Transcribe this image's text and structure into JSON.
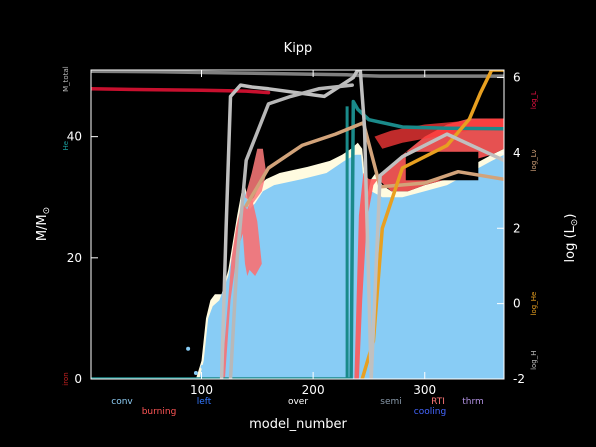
{
  "chart_data": {
    "type": "line",
    "title": "Kipp",
    "xlabel": "model_number",
    "ylabel_left": "M/M",
    "ylabel_left_sub": "⊙",
    "ylabel_right": "log (L",
    "ylabel_right_sub": "⊙",
    "ylabel_right_close": ")",
    "x_range": [
      1,
      371
    ],
    "y_left_range": [
      0,
      51
    ],
    "y_right_range": [
      -2,
      6.2
    ],
    "x_ticks": [
      100,
      200,
      300
    ],
    "y_left_ticks": [
      0,
      20,
      40
    ],
    "y_right_ticks": [
      -2,
      0,
      2,
      4,
      6
    ],
    "left_side_labels": [
      {
        "id": "mtotal",
        "text": "M_total",
        "color": "#bbbbbb",
        "y": 49.5
      },
      {
        "id": "he",
        "text": "He",
        "color": "#1a9a9a",
        "y": 38.5
      },
      {
        "id": "iron",
        "text": "iron",
        "color": "#cc2222",
        "y": 0
      }
    ],
    "right_side_labels": [
      {
        "id": "logl",
        "text": "log_L",
        "color": "#ee1144",
        "y": 5.4
      },
      {
        "id": "loglnu",
        "text": "log_Lν",
        "color": "#d2a37a",
        "y": 3.8
      },
      {
        "id": "loglhe",
        "text": "log_He",
        "color": "#e8a020",
        "y": 0
      },
      {
        "id": "loglh",
        "text": "log_H",
        "color": "#bbbbbb",
        "y": -1.5
      }
    ],
    "legend": [
      {
        "id": "conv",
        "text": "conv",
        "color": "#8ecdf5"
      },
      {
        "id": "burning",
        "text": "burning",
        "color": "#ff5555"
      },
      {
        "id": "left",
        "text": "left",
        "color": "#3377ff"
      },
      {
        "id": "over",
        "text": "over",
        "color": "#ffffff"
      },
      {
        "id": "semi",
        "text": "semi",
        "color": "#8899aa"
      },
      {
        "id": "rti",
        "text": "RTI",
        "color": "#ff7777"
      },
      {
        "id": "cooling",
        "text": "cooling",
        "color": "#4466ff"
      },
      {
        "id": "thrm",
        "text": "thrm",
        "color": "#b090e0"
      }
    ],
    "series": [
      {
        "name": "M_total",
        "axis": "left",
        "color": "#808080",
        "x": [
          1,
          60,
          130,
          200,
          230,
          242,
          260,
          300,
          371
        ],
        "y": [
          50.8,
          50.7,
          50.5,
          50.3,
          50.2,
          50.1,
          50.0,
          50.0,
          50.0
        ]
      },
      {
        "name": "He core",
        "axis": "left",
        "color": "#1a8a8a",
        "x": [
          1,
          100,
          200,
          234,
          236,
          240,
          250,
          280,
          320,
          371
        ],
        "y": [
          0,
          0,
          0,
          0,
          45.8,
          44.5,
          42.8,
          41.6,
          41.4,
          41.3
        ]
      },
      {
        "name": "log_L",
        "axis": "right",
        "color": "#c8102e",
        "x": [
          1,
          50,
          100,
          140,
          160
        ],
        "y": [
          5.7,
          5.68,
          5.66,
          5.64,
          5.6
        ]
      },
      {
        "name": "log_Lnu",
        "axis": "right",
        "color": "#d2a37a",
        "x": [
          140,
          160,
          190,
          220,
          245,
          260,
          300,
          330,
          371
        ],
        "y": [
          2.6,
          3.6,
          4.2,
          4.5,
          4.8,
          3.1,
          3.2,
          3.5,
          3.3
        ]
      },
      {
        "name": "log_LHe",
        "axis": "right",
        "color": "#e8a020",
        "x": [
          244,
          254,
          262,
          280,
          320,
          340,
          350,
          360,
          371
        ],
        "y": [
          -2,
          -1.0,
          2.0,
          3.6,
          4.2,
          4.9,
          5.6,
          6.2,
          6.2
        ]
      },
      {
        "name": "log_LH",
        "axis": "right",
        "color": "#c0c0c0",
        "x": [
          118,
          122,
          126,
          135,
          145,
          160,
          210,
          236,
          242,
          246,
          252,
          260,
          280,
          320,
          371
        ],
        "y": [
          -2,
          2,
          5.5,
          5.8,
          5.75,
          5.7,
          5.5,
          6.0,
          6.3,
          4.7,
          -2,
          3.4,
          3.9,
          4.5,
          3.8
        ]
      },
      {
        "name": "log_LH_2",
        "axis": "right",
        "color": "#b8b8b8",
        "x": [
          126,
          132,
          140,
          160,
          180,
          205,
          235
        ],
        "y": [
          -2,
          1.2,
          3.8,
          5.3,
          5.5,
          5.7,
          5.8
        ]
      }
    ]
  }
}
